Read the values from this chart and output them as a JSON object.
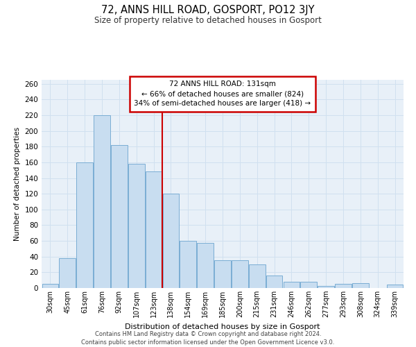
{
  "title": "72, ANNS HILL ROAD, GOSPORT, PO12 3JY",
  "subtitle": "Size of property relative to detached houses in Gosport",
  "xlabel": "Distribution of detached houses by size in Gosport",
  "ylabel": "Number of detached properties",
  "bar_labels": [
    "30sqm",
    "45sqm",
    "61sqm",
    "76sqm",
    "92sqm",
    "107sqm",
    "123sqm",
    "138sqm",
    "154sqm",
    "169sqm",
    "185sqm",
    "200sqm",
    "215sqm",
    "231sqm",
    "246sqm",
    "262sqm",
    "277sqm",
    "293sqm",
    "308sqm",
    "324sqm",
    "339sqm"
  ],
  "bar_values": [
    5,
    38,
    160,
    220,
    182,
    158,
    148,
    120,
    60,
    57,
    35,
    35,
    30,
    16,
    8,
    8,
    3,
    5,
    6,
    0,
    4
  ],
  "bar_color": "#c8ddf0",
  "bar_edge_color": "#7aadd4",
  "grid_color": "#d0e0ef",
  "background_color": "#e8f0f8",
  "vline_index": 7,
  "vline_color": "#cc0000",
  "annotation_title": "72 ANNS HILL ROAD: 131sqm",
  "annotation_line1": "← 66% of detached houses are smaller (824)",
  "annotation_line2": "34% of semi-detached houses are larger (418) →",
  "annotation_box_color": "#cc0000",
  "ylim": [
    0,
    265
  ],
  "yticks": [
    0,
    20,
    40,
    60,
    80,
    100,
    120,
    140,
    160,
    180,
    200,
    220,
    240,
    260
  ],
  "footer_line1": "Contains HM Land Registry data © Crown copyright and database right 2024.",
  "footer_line2": "Contains public sector information licensed under the Open Government Licence v3.0."
}
